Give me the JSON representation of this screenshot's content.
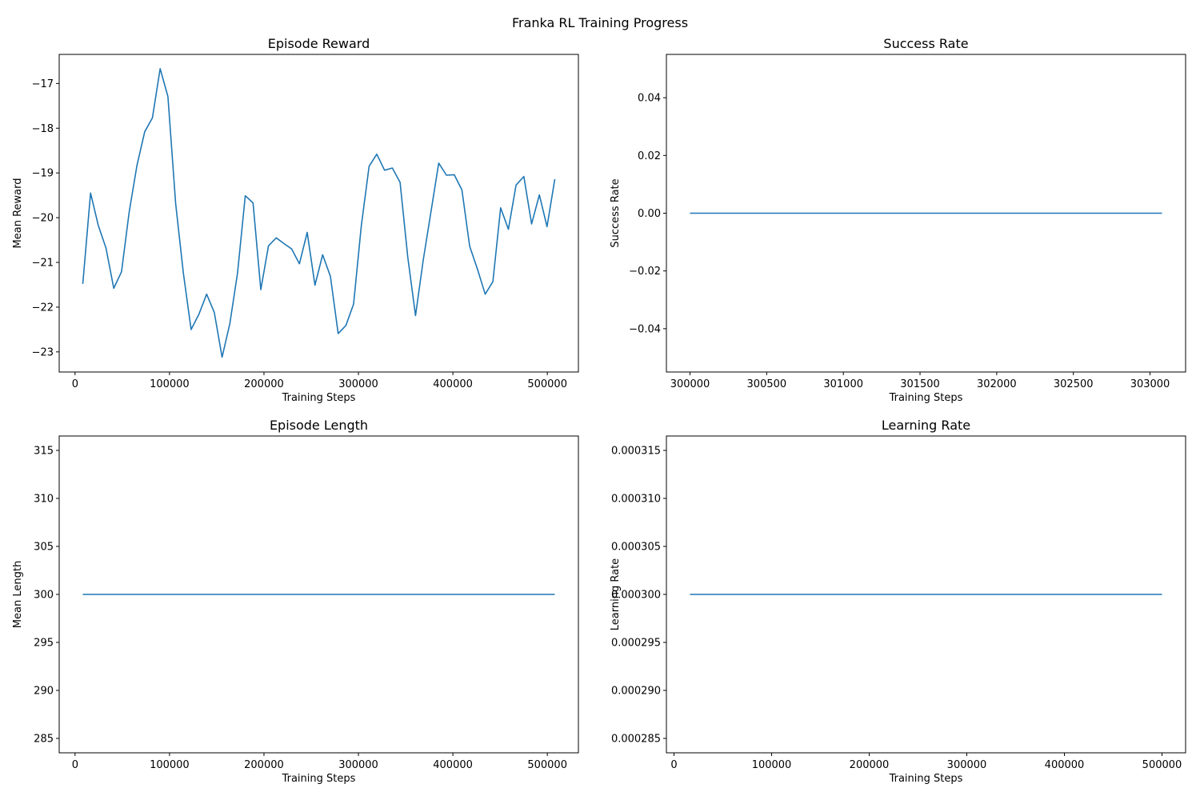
{
  "suptitle": "Franka RL Training Progress",
  "line_color": "#1f77b4",
  "chart_data": [
    {
      "type": "line",
      "title": "Episode Reward",
      "xlabel": "Training Steps",
      "ylabel": "Mean Reward",
      "xlim": [
        -16794,
        532890
      ],
      "ylim": [
        -23.45,
        -16.35
      ],
      "xticks": [
        0,
        100000,
        200000,
        300000,
        400000,
        500000
      ],
      "xtick_labels": [
        "0",
        "100000",
        "200000",
        "300000",
        "400000",
        "500000"
      ],
      "yticks": [
        -23,
        -22,
        -21,
        -20,
        -19,
        -18,
        -17
      ],
      "ytick_labels": [
        "−23",
        "−22",
        "−21",
        "−20",
        "−19",
        "−18",
        "−17"
      ],
      "grid": false,
      "x_step": 8192,
      "y": [
        -21.48,
        -19.45,
        -20.17,
        -20.68,
        -21.58,
        -21.21,
        -19.87,
        -18.83,
        -18.08,
        -17.77,
        -16.67,
        -17.29,
        -19.69,
        -21.24,
        -22.5,
        -22.16,
        -21.71,
        -22.12,
        -23.12,
        -22.37,
        -21.24,
        -19.51,
        -19.67,
        -21.61,
        -20.63,
        -20.45,
        -20.58,
        -20.7,
        -21.03,
        -20.33,
        -21.51,
        -20.83,
        -21.31,
        -22.59,
        -22.41,
        -21.93,
        -20.17,
        -18.85,
        -18.58,
        -18.94,
        -18.89,
        -19.21,
        -20.88,
        -22.19,
        -20.94,
        -19.87,
        -18.78,
        -19.05,
        -19.04,
        -19.38,
        -20.64,
        -21.15,
        -21.71,
        -21.43,
        -19.78,
        -20.26,
        -19.27,
        -19.08,
        -20.14,
        -19.49,
        -20.2,
        -19.14
      ]
    },
    {
      "type": "line",
      "title": "Success Rate",
      "xlabel": "Training Steps",
      "ylabel": "Success Rate",
      "xlim": [
        299846,
        303232
      ],
      "ylim": [
        -0.055,
        0.055
      ],
      "xticks": [
        300000,
        300500,
        301000,
        301500,
        302000,
        302500,
        303000
      ],
      "xtick_labels": [
        "300000",
        "300500",
        "301000",
        "301500",
        "302000",
        "302500",
        "303000"
      ],
      "yticks": [
        -0.04,
        -0.02,
        0,
        0.02,
        0.04
      ],
      "ytick_labels": [
        "−0.04",
        "−0.02",
        "0.00",
        "0.02",
        "0.04"
      ],
      "grid": false,
      "x": [
        300000,
        303078
      ],
      "y": [
        0,
        0
      ]
    },
    {
      "type": "line",
      "title": "Episode Length",
      "xlabel": "Training Steps",
      "ylabel": "Mean Length",
      "xlim": [
        -16794,
        532890
      ],
      "ylim": [
        283.5,
        316.5
      ],
      "xticks": [
        0,
        100000,
        200000,
        300000,
        400000,
        500000
      ],
      "xtick_labels": [
        "0",
        "100000",
        "200000",
        "300000",
        "400000",
        "500000"
      ],
      "yticks": [
        285,
        290,
        295,
        300,
        305,
        310,
        315
      ],
      "ytick_labels": [
        "285",
        "290",
        "295",
        "300",
        "305",
        "310",
        "315"
      ],
      "grid": false,
      "x": [
        8192,
        507904
      ],
      "y": [
        300,
        300
      ]
    },
    {
      "type": "line",
      "title": "Learning Rate",
      "xlabel": "Training Steps",
      "ylabel": "Learning Rate",
      "xlim": [
        -7797,
        524181
      ],
      "ylim": [
        0.0002835,
        0.0003165
      ],
      "xticks": [
        0,
        100000,
        200000,
        300000,
        400000,
        500000
      ],
      "xtick_labels": [
        "0",
        "100000",
        "200000",
        "300000",
        "400000",
        "500000"
      ],
      "yticks": [
        0.000285,
        0.00029,
        0.000295,
        0.0003,
        0.000305,
        0.00031,
        0.000315
      ],
      "ytick_labels": [
        "0.000285",
        "0.000290",
        "0.000295",
        "0.000300",
        "0.000305",
        "0.000310",
        "0.000315"
      ],
      "grid": false,
      "x": [
        16384,
        500000
      ],
      "y": [
        0.0003,
        0.0003
      ]
    }
  ]
}
